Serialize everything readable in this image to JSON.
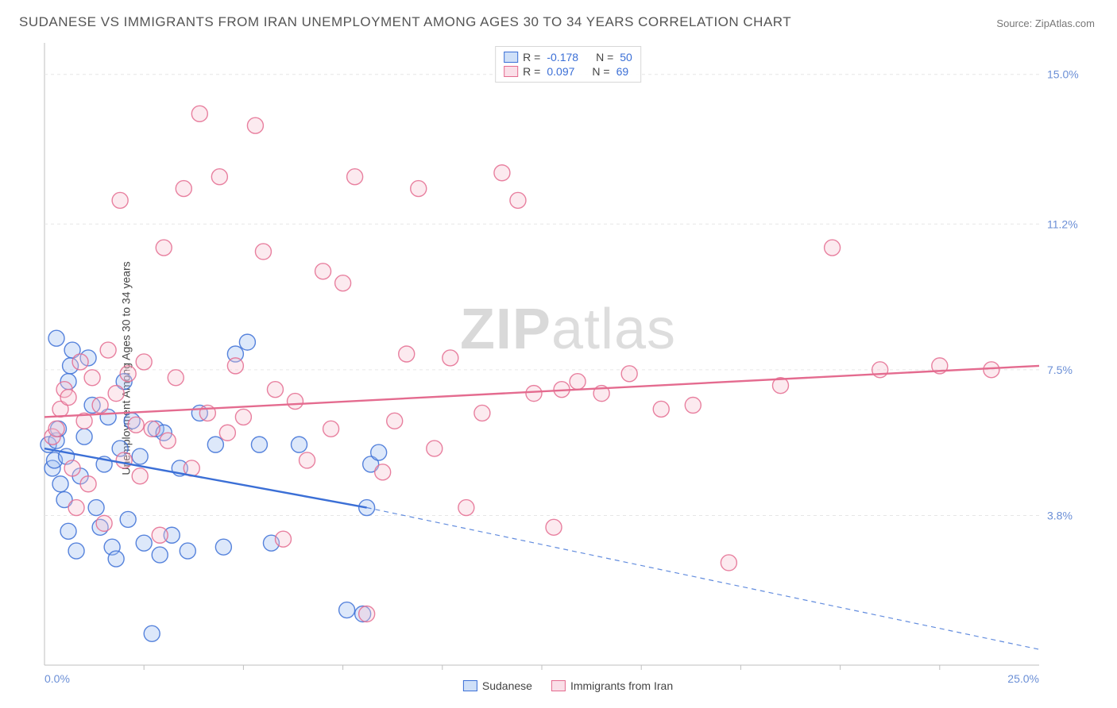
{
  "title": "SUDANESE VS IMMIGRANTS FROM IRAN UNEMPLOYMENT AMONG AGES 30 TO 34 YEARS CORRELATION CHART",
  "source_label": "Source:",
  "source_site": "ZipAtlas.com",
  "ylabel": "Unemployment Among Ages 30 to 34 years",
  "watermark": {
    "zip": "ZIP",
    "atlas": "atlas"
  },
  "chart": {
    "type": "scatter-with-regression",
    "background_color": "#ffffff",
    "grid_color": "#e6e6e6",
    "frame_color": "#bfbfbf",
    "xlim": [
      0,
      25
    ],
    "ylim": [
      0,
      15.8
    ],
    "xtick_labels": [
      {
        "value": 0,
        "label": "0.0%"
      },
      {
        "value": 25,
        "label": "25.0%"
      }
    ],
    "ytick_labels": [
      {
        "value": 3.8,
        "label": "3.8%"
      },
      {
        "value": 7.5,
        "label": "7.5%"
      },
      {
        "value": 11.2,
        "label": "11.2%"
      },
      {
        "value": 15.0,
        "label": "15.0%"
      }
    ],
    "xgrid_minor": [
      2.5,
      5,
      7.5,
      10,
      12.5,
      15,
      17.5,
      20,
      22.5
    ],
    "ygrid_lines": [
      3.8,
      7.5,
      11.2,
      15.0
    ],
    "tick_label_color": "#6b8fd6",
    "tick_label_fontsize": 14,
    "marker_radius": 10,
    "marker_fill_opacity": 0.35,
    "marker_stroke_width": 1.4,
    "line_width": 2.4,
    "series": [
      {
        "name": "Sudanese",
        "color_stroke": "#3b6fd6",
        "color_fill": "#9fbef0",
        "R": "-0.178",
        "N": "50",
        "regression": {
          "x1": 0,
          "y1": 5.5,
          "x2": 8.1,
          "y2": 4.0,
          "solid_until_x": 8.1,
          "dash_to_x": 25,
          "dash_to_y": 0.4
        },
        "points": [
          [
            0.1,
            5.6
          ],
          [
            0.2,
            5.0
          ],
          [
            0.25,
            5.2
          ],
          [
            0.3,
            5.7
          ],
          [
            0.35,
            6.0
          ],
          [
            0.3,
            8.3
          ],
          [
            0.4,
            4.6
          ],
          [
            0.5,
            4.2
          ],
          [
            0.55,
            5.3
          ],
          [
            0.6,
            7.2
          ],
          [
            0.65,
            7.6
          ],
          [
            0.7,
            8.0
          ],
          [
            0.6,
            3.4
          ],
          [
            0.8,
            2.9
          ],
          [
            0.9,
            4.8
          ],
          [
            1.0,
            5.8
          ],
          [
            1.1,
            7.8
          ],
          [
            1.2,
            6.6
          ],
          [
            1.3,
            4.0
          ],
          [
            1.4,
            3.5
          ],
          [
            1.5,
            5.1
          ],
          [
            1.6,
            6.3
          ],
          [
            1.7,
            3.0
          ],
          [
            1.8,
            2.7
          ],
          [
            1.9,
            5.5
          ],
          [
            2.0,
            7.2
          ],
          [
            2.1,
            3.7
          ],
          [
            2.2,
            6.2
          ],
          [
            2.4,
            5.3
          ],
          [
            2.5,
            3.1
          ],
          [
            2.7,
            0.8
          ],
          [
            2.8,
            6.0
          ],
          [
            2.9,
            2.8
          ],
          [
            3.0,
            5.9
          ],
          [
            3.2,
            3.3
          ],
          [
            3.4,
            5.0
          ],
          [
            3.6,
            2.9
          ],
          [
            3.9,
            6.4
          ],
          [
            4.3,
            5.6
          ],
          [
            4.5,
            3.0
          ],
          [
            4.8,
            7.9
          ],
          [
            5.1,
            8.2
          ],
          [
            5.4,
            5.6
          ],
          [
            5.7,
            3.1
          ],
          [
            6.4,
            5.6
          ],
          [
            7.6,
            1.4
          ],
          [
            8.0,
            1.3
          ],
          [
            8.2,
            5.1
          ],
          [
            8.4,
            5.4
          ],
          [
            8.1,
            4.0
          ]
        ]
      },
      {
        "name": "Immigrants from Iran",
        "color_stroke": "#e46b8f",
        "color_fill": "#f6c2d1",
        "R": "0.097",
        "N": "69",
        "regression": {
          "x1": 0,
          "y1": 6.3,
          "x2": 25,
          "y2": 7.6,
          "solid_until_x": 25
        },
        "points": [
          [
            0.2,
            5.8
          ],
          [
            0.3,
            6.0
          ],
          [
            0.4,
            6.5
          ],
          [
            0.5,
            7.0
          ],
          [
            0.6,
            6.8
          ],
          [
            0.7,
            5.0
          ],
          [
            0.8,
            4.0
          ],
          [
            0.9,
            7.7
          ],
          [
            1.0,
            6.2
          ],
          [
            1.1,
            4.6
          ],
          [
            1.2,
            7.3
          ],
          [
            1.4,
            6.6
          ],
          [
            1.5,
            3.6
          ],
          [
            1.6,
            8.0
          ],
          [
            1.8,
            6.9
          ],
          [
            1.9,
            11.8
          ],
          [
            2.0,
            5.2
          ],
          [
            2.1,
            7.4
          ],
          [
            2.3,
            6.1
          ],
          [
            2.4,
            4.8
          ],
          [
            2.5,
            7.7
          ],
          [
            2.7,
            6.0
          ],
          [
            2.9,
            3.3
          ],
          [
            3.0,
            10.6
          ],
          [
            3.1,
            5.7
          ],
          [
            3.3,
            7.3
          ],
          [
            3.5,
            12.1
          ],
          [
            3.7,
            5.0
          ],
          [
            3.9,
            14.0
          ],
          [
            4.1,
            6.4
          ],
          [
            4.4,
            12.4
          ],
          [
            4.6,
            5.9
          ],
          [
            4.8,
            7.6
          ],
          [
            5.0,
            6.3
          ],
          [
            5.3,
            13.7
          ],
          [
            5.5,
            10.5
          ],
          [
            5.8,
            7.0
          ],
          [
            6.0,
            3.2
          ],
          [
            6.3,
            6.7
          ],
          [
            6.6,
            5.2
          ],
          [
            7.0,
            10.0
          ],
          [
            7.2,
            6.0
          ],
          [
            7.5,
            9.7
          ],
          [
            7.8,
            12.4
          ],
          [
            8.1,
            1.3
          ],
          [
            8.5,
            4.9
          ],
          [
            8.8,
            6.2
          ],
          [
            9.1,
            7.9
          ],
          [
            9.4,
            12.1
          ],
          [
            9.8,
            5.5
          ],
          [
            10.2,
            7.8
          ],
          [
            10.6,
            4.0
          ],
          [
            11.0,
            6.4
          ],
          [
            11.5,
            12.5
          ],
          [
            11.9,
            11.8
          ],
          [
            12.3,
            6.9
          ],
          [
            12.8,
            3.5
          ],
          [
            13.4,
            7.2
          ],
          [
            14.0,
            6.9
          ],
          [
            14.7,
            7.4
          ],
          [
            15.5,
            6.5
          ],
          [
            16.3,
            6.6
          ],
          [
            17.2,
            2.6
          ],
          [
            18.5,
            7.1
          ],
          [
            19.8,
            10.6
          ],
          [
            21.0,
            7.5
          ],
          [
            22.5,
            7.6
          ],
          [
            23.8,
            7.5
          ],
          [
            13.0,
            7.0
          ]
        ]
      }
    ],
    "legend_bottom": [
      {
        "swatch_stroke": "#3b6fd6",
        "swatch_fill": "#9fbef0",
        "label": "Sudanese"
      },
      {
        "swatch_stroke": "#e46b8f",
        "swatch_fill": "#f6c2d1",
        "label": "Immigrants from Iran"
      }
    ]
  }
}
